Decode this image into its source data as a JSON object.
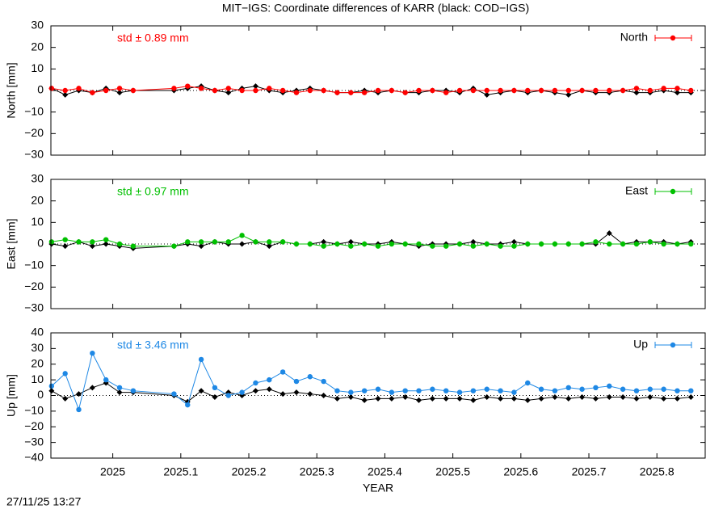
{
  "chart_data": [
    {
      "type": "line",
      "title": "MIT−IGS: Coordinate differences of KARR (black: COD−IGS)",
      "y_label": "North [mm]",
      "annotation": "std ± 0.89 mm",
      "xlim": [
        2024.909,
        2025.871
      ],
      "ylim": [
        -30,
        30
      ],
      "yticks": [
        {
          "value": -30,
          "label": "−30"
        },
        {
          "value": -20,
          "label": "−20"
        },
        {
          "value": -10,
          "label": "−10"
        },
        0,
        10,
        20,
        30
      ],
      "x": [
        2024.91,
        2024.93,
        2024.95,
        2024.97,
        2024.99,
        2025.01,
        2025.03,
        2025.09,
        2025.11,
        2025.13,
        2025.15,
        2025.17,
        2025.19,
        2025.21,
        2025.23,
        2025.25,
        2025.27,
        2025.29,
        2025.31,
        2025.33,
        2025.35,
        2025.37,
        2025.39,
        2025.41,
        2025.43,
        2025.45,
        2025.47,
        2025.49,
        2025.51,
        2025.53,
        2025.55,
        2025.57,
        2025.59,
        2025.61,
        2025.63,
        2025.65,
        2025.67,
        2025.69,
        2025.71,
        2025.73,
        2025.75,
        2025.77,
        2025.79,
        2025.81,
        2025.83,
        2025.85
      ],
      "series": [
        {
          "color": "#000000",
          "values": [
            1,
            -2,
            0,
            -1,
            1,
            -1,
            0,
            0,
            1,
            2,
            0,
            -1,
            1,
            2,
            0,
            -1,
            0,
            1,
            0,
            -1,
            -1,
            0,
            -1,
            0,
            -1,
            -1,
            0,
            0,
            -1,
            1,
            -2,
            -1,
            0,
            -1,
            0,
            -1,
            -2,
            0,
            -1,
            -1,
            0,
            -1,
            -1,
            0,
            -1,
            -1
          ]
        },
        {
          "name": "North",
          "color": "#ff0000",
          "values": [
            1,
            0,
            1,
            -1,
            0,
            1,
            0,
            1,
            2,
            1,
            0,
            1,
            0,
            0,
            1,
            0,
            -1,
            0,
            0,
            -1,
            -1,
            -1,
            0,
            0,
            -1,
            0,
            0,
            -1,
            0,
            0,
            0,
            0,
            0,
            0,
            0,
            0,
            0,
            0,
            0,
            0,
            0,
            1,
            0,
            1,
            1,
            0
          ]
        }
      ]
    },
    {
      "type": "line",
      "y_label": "East [mm]",
      "annotation": "std ± 0.97 mm",
      "xlim": [
        2024.909,
        2025.871
      ],
      "ylim": [
        -30,
        30
      ],
      "yticks": [
        {
          "value": -30,
          "label": "−30"
        },
        {
          "value": -20,
          "label": "−20"
        },
        {
          "value": -10,
          "label": "−10"
        },
        0,
        10,
        20,
        30
      ],
      "x": [
        2024.91,
        2024.93,
        2024.95,
        2024.97,
        2024.99,
        2025.01,
        2025.03,
        2025.09,
        2025.11,
        2025.13,
        2025.15,
        2025.17,
        2025.19,
        2025.21,
        2025.23,
        2025.25,
        2025.27,
        2025.29,
        2025.31,
        2025.33,
        2025.35,
        2025.37,
        2025.39,
        2025.41,
        2025.43,
        2025.45,
        2025.47,
        2025.49,
        2025.51,
        2025.53,
        2025.55,
        2025.57,
        2025.59,
        2025.61,
        2025.63,
        2025.65,
        2025.67,
        2025.69,
        2025.71,
        2025.73,
        2025.75,
        2025.77,
        2025.79,
        2025.81,
        2025.83,
        2025.85
      ],
      "series": [
        {
          "color": "#000000",
          "values": [
            0,
            -1,
            1,
            -1,
            0,
            -1,
            -2,
            -1,
            0,
            -1,
            1,
            0,
            0,
            1,
            -1,
            1,
            0,
            0,
            1,
            0,
            1,
            0,
            0,
            1,
            0,
            -1,
            0,
            0,
            0,
            1,
            0,
            0,
            1,
            0,
            0,
            0,
            0,
            0,
            0,
            5,
            0,
            1,
            1,
            1,
            0,
            1
          ]
        },
        {
          "name": "East",
          "color": "#00c000",
          "values": [
            1,
            2,
            1,
            1,
            2,
            0,
            -1,
            -1,
            1,
            1,
            1,
            1,
            4,
            1,
            1,
            1,
            0,
            0,
            -1,
            0,
            -1,
            0,
            -1,
            0,
            0,
            0,
            -1,
            -1,
            0,
            -1,
            0,
            -1,
            -1,
            0,
            0,
            0,
            0,
            0,
            1,
            0,
            0,
            0,
            1,
            0,
            0,
            0
          ]
        }
      ]
    },
    {
      "type": "line",
      "y_label": "Up [mm]",
      "annotation": "std ± 3.46 mm",
      "x_label": "YEAR",
      "xlim": [
        2024.909,
        2025.871
      ],
      "ylim": [
        -40,
        40
      ],
      "yticks": [
        {
          "value": -40,
          "label": "−40"
        },
        {
          "value": -30,
          "label": "−30"
        },
        {
          "value": -20,
          "label": "−20"
        },
        {
          "value": -10,
          "label": "−10"
        },
        0,
        10,
        20,
        30,
        40
      ],
      "xticks": [
        2025,
        2025.1,
        2025.2,
        2025.3,
        2025.4,
        2025.5,
        2025.6,
        2025.7,
        2025.8
      ],
      "x": [
        2024.91,
        2024.93,
        2024.95,
        2024.97,
        2024.99,
        2025.01,
        2025.03,
        2025.09,
        2025.11,
        2025.13,
        2025.15,
        2025.17,
        2025.19,
        2025.21,
        2025.23,
        2025.25,
        2025.27,
        2025.29,
        2025.31,
        2025.33,
        2025.35,
        2025.37,
        2025.39,
        2025.41,
        2025.43,
        2025.45,
        2025.47,
        2025.49,
        2025.51,
        2025.53,
        2025.55,
        2025.57,
        2025.59,
        2025.61,
        2025.63,
        2025.65,
        2025.67,
        2025.69,
        2025.71,
        2025.73,
        2025.75,
        2025.77,
        2025.79,
        2025.81,
        2025.83,
        2025.85
      ],
      "series": [
        {
          "color": "#000000",
          "values": [
            3,
            -2,
            1,
            5,
            8,
            2,
            2,
            0,
            -4,
            3,
            -1,
            2,
            0,
            3,
            4,
            1,
            2,
            1,
            0,
            -2,
            -1,
            -3,
            -2,
            -2,
            -1,
            -3,
            -2,
            -2,
            -2,
            -3,
            -1,
            -2,
            -2,
            -3,
            -2,
            -1,
            -2,
            -1,
            -2,
            -1,
            -1,
            -2,
            -1,
            -2,
            -2,
            -1
          ]
        },
        {
          "name": "Up",
          "color": "#1e88e5",
          "values": [
            6,
            14,
            -9,
            27,
            10,
            5,
            3,
            1,
            -6,
            23,
            5,
            0,
            2,
            8,
            10,
            15,
            9,
            12,
            9,
            3,
            2,
            3,
            4,
            2,
            3,
            3,
            4,
            3,
            2,
            3,
            4,
            3,
            2,
            8,
            4,
            3,
            5,
            4,
            5,
            6,
            4,
            3,
            4,
            4,
            3,
            3
          ]
        }
      ]
    }
  ],
  "timestamp": "27/11/25 13:27"
}
